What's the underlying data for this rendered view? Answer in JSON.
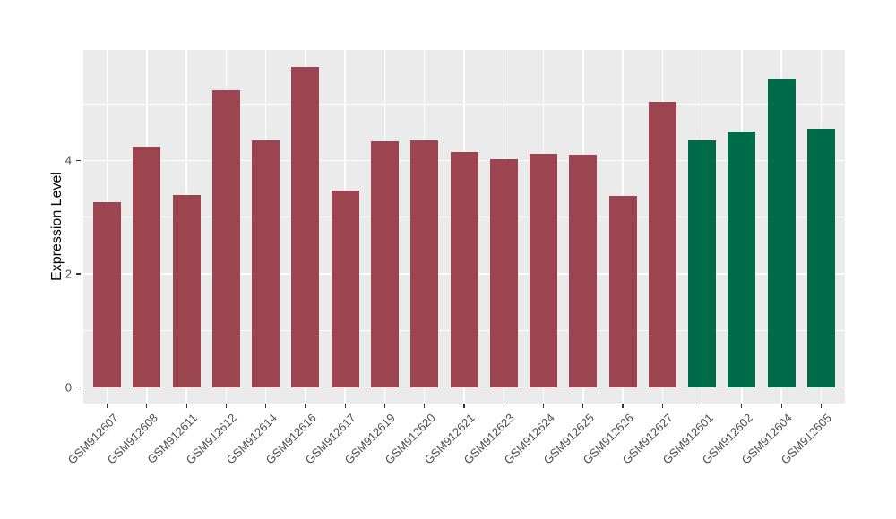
{
  "figure": {
    "background": "#ffffff"
  },
  "panel": {
    "background": "#ebebeb",
    "grid_color": "#ffffff",
    "tick_mark_color": "#333333",
    "tick_label_color": "#4d4d4d",
    "axis_title_color": "#000000"
  },
  "chart_data": {
    "type": "bar",
    "title": "",
    "xlabel": "",
    "ylabel": "Expression Level",
    "categories": [
      "GSM912607",
      "GSM912608",
      "GSM912611",
      "GSM912612",
      "GSM912614",
      "GSM912616",
      "GSM912617",
      "GSM912619",
      "GSM912620",
      "GSM912621",
      "GSM912623",
      "GSM912624",
      "GSM912625",
      "GSM912626",
      "GSM912627",
      "GSM912601",
      "GSM912602",
      "GSM912604",
      "GSM912605"
    ],
    "values": [
      3.26,
      4.24,
      3.39,
      5.24,
      4.35,
      5.65,
      3.47,
      4.34,
      4.35,
      4.15,
      4.02,
      4.12,
      4.1,
      3.37,
      5.03,
      4.35,
      4.51,
      5.44,
      4.56
    ],
    "bar_groups": [
      "group1",
      "group1",
      "group1",
      "group1",
      "group1",
      "group1",
      "group1",
      "group1",
      "group1",
      "group1",
      "group1",
      "group1",
      "group1",
      "group1",
      "group1",
      "group2",
      "group2",
      "group2",
      "group2"
    ],
    "group_colors": {
      "group1": "#9c4450",
      "group2": "#006b48"
    },
    "yticks_labels": [
      "0",
      "2",
      "4"
    ],
    "ytick_values": [
      0,
      2,
      4
    ],
    "y_minor_tick_values": [
      1,
      3,
      5
    ],
    "ylim": [
      0,
      5.95
    ],
    "ylim_expanded": [
      -0.29,
      5.95
    ],
    "bar_width_ratio": 0.7,
    "grid": "horizontal major+minor, vertical major at category centers",
    "legend": "none",
    "x_label_angle": 45
  }
}
